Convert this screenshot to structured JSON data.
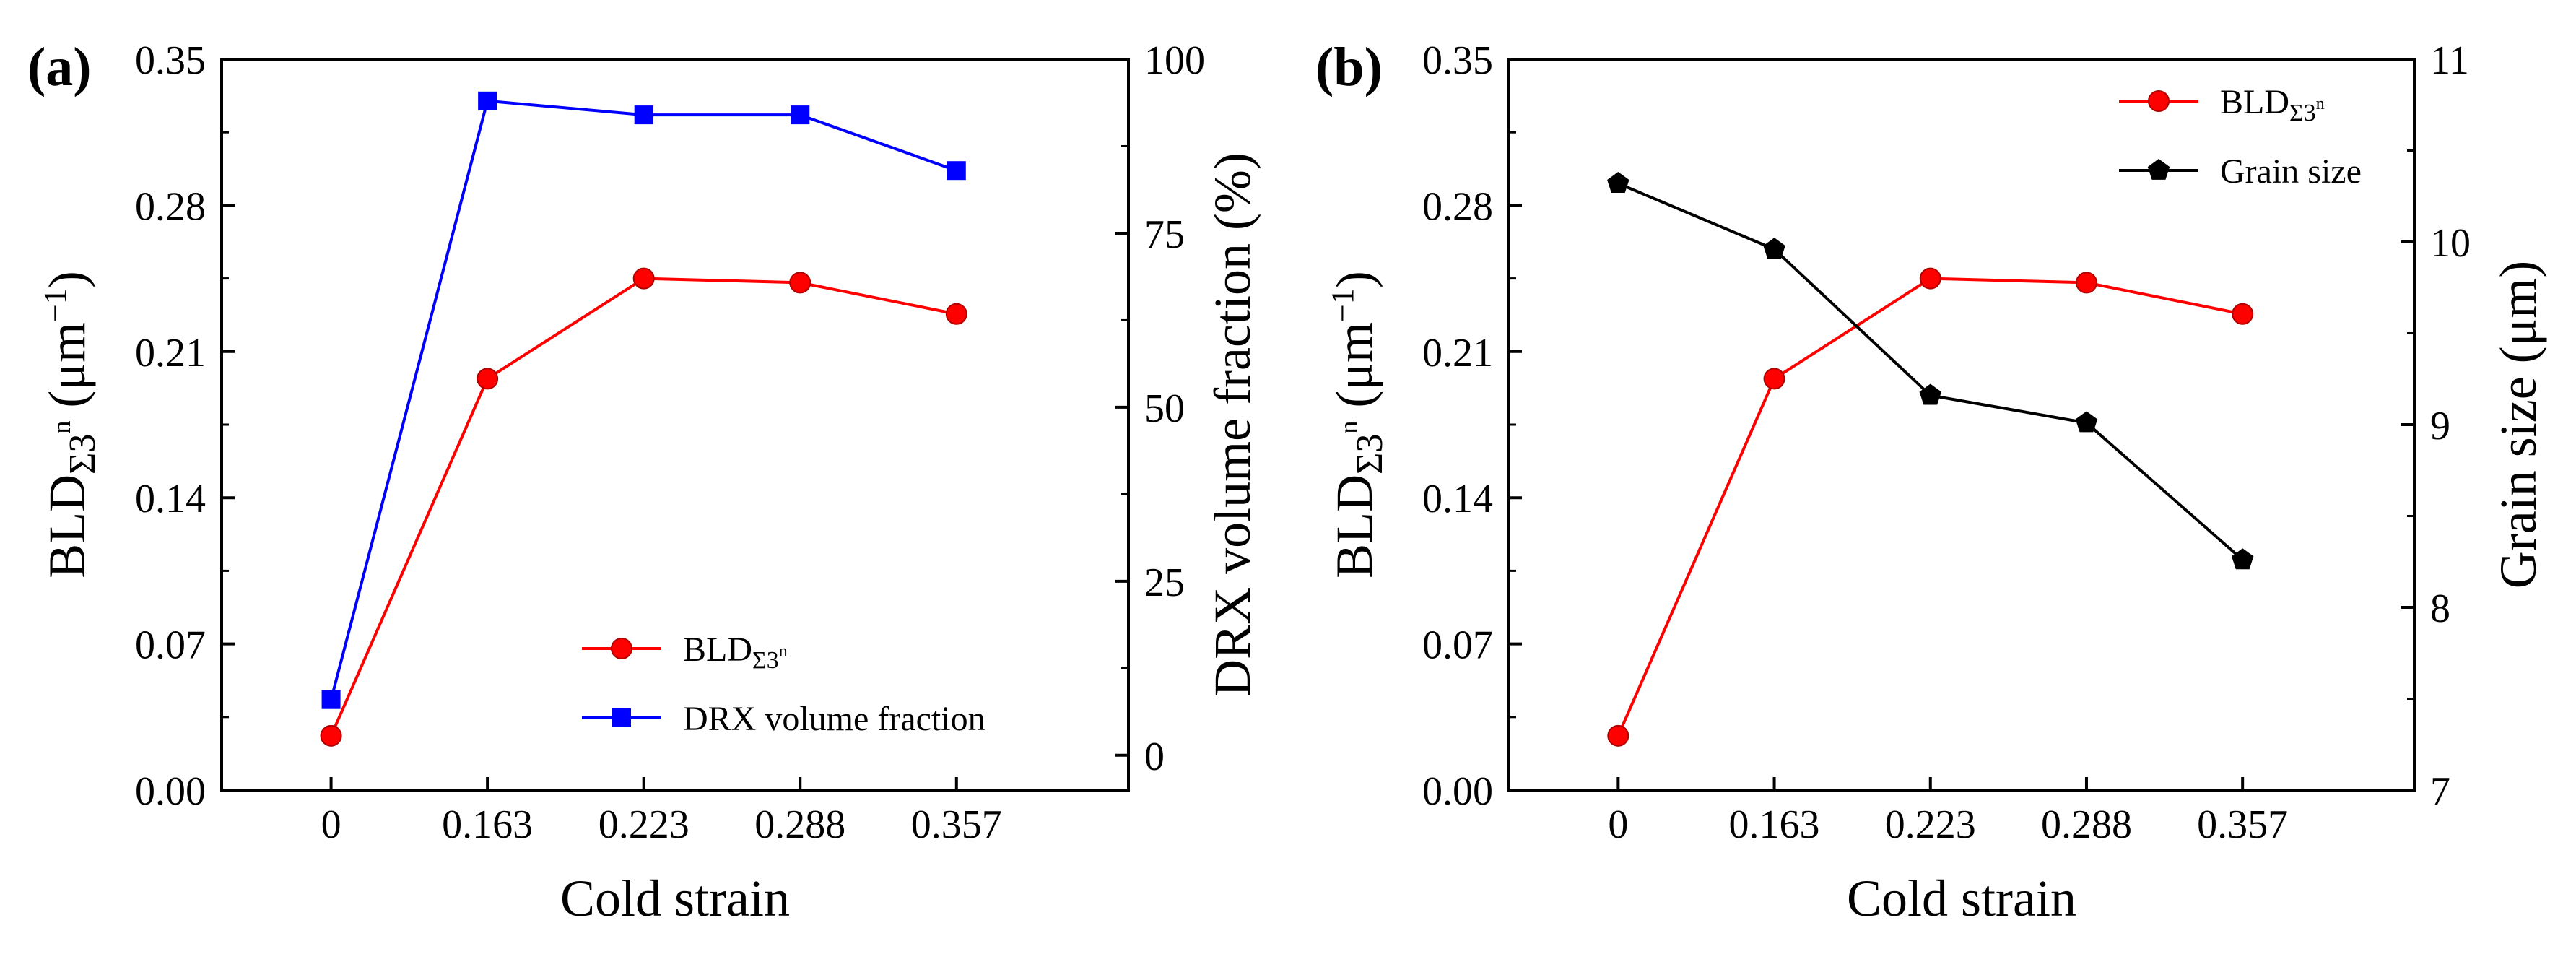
{
  "chart_data": [
    {
      "panel_label": "(a)",
      "type": "line",
      "categories": [
        "0",
        "0.163",
        "0.223",
        "0.288",
        "0.357"
      ],
      "xlabel": "Cold strain",
      "ylabel_left": {
        "main": "BLD",
        "sub": "Σ3",
        "sup": "n",
        "unit_open": " (μm",
        "unit_exp": "−1",
        "unit_close": ")"
      },
      "ylabel_right": "DRX volume fraction (%)",
      "ylim_left": [
        0,
        0.35
      ],
      "yticks_left": [
        "0.00",
        "0.07",
        "0.14",
        "0.21",
        "0.28",
        "0.35"
      ],
      "ylim_right": [
        -5,
        100
      ],
      "yticks_right": [
        "0",
        "25",
        "50",
        "75",
        "100"
      ],
      "legend_position": "bottom-right",
      "series": [
        {
          "name": "BLD",
          "legend_sub": "Σ3",
          "legend_sup": "n",
          "axis": "left",
          "color": "#ff0000",
          "marker": "circle",
          "values": [
            0.026,
            0.197,
            0.245,
            0.243,
            0.228
          ]
        },
        {
          "name": "DRX volume fraction",
          "axis": "right",
          "color": "#0000ff",
          "marker": "square",
          "values": [
            8,
            94,
            92,
            92,
            84
          ]
        }
      ]
    },
    {
      "panel_label": "(b)",
      "type": "line",
      "categories": [
        "0",
        "0.163",
        "0.223",
        "0.288",
        "0.357"
      ],
      "xlabel": "Cold strain",
      "ylabel_left": {
        "main": "BLD",
        "sub": "Σ3",
        "sup": "n",
        "unit_open": " (μm",
        "unit_exp": "−1",
        "unit_close": ")"
      },
      "ylabel_right": "Grain size (μm)",
      "ylim_left": [
        0,
        0.35
      ],
      "yticks_left": [
        "0.00",
        "0.07",
        "0.14",
        "0.21",
        "0.28",
        "0.35"
      ],
      "ylim_right": [
        7,
        11
      ],
      "yticks_right": [
        "7",
        "8",
        "9",
        "10",
        "11"
      ],
      "legend_position": "top-right",
      "series": [
        {
          "name": "BLD",
          "legend_sub": "Σ3",
          "legend_sup": "n",
          "axis": "left",
          "color": "#ff0000",
          "marker": "circle",
          "values": [
            0.026,
            0.197,
            0.245,
            0.243,
            0.228
          ]
        },
        {
          "name": "Grain size",
          "axis": "right",
          "color": "#000000",
          "marker": "pentagon",
          "values": [
            10.32,
            9.96,
            9.16,
            9.01,
            8.26
          ]
        }
      ]
    }
  ]
}
